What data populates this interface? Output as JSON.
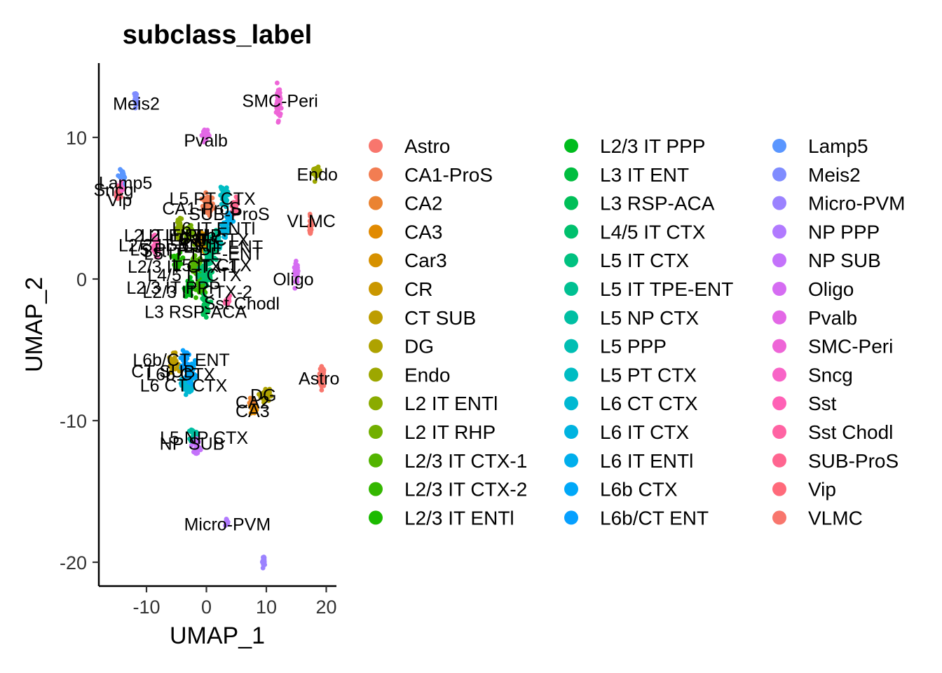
{
  "chart_data": {
    "type": "scatter",
    "title": "subclass_label",
    "xlabel": "UMAP_1",
    "ylabel": "UMAP_2",
    "xlim": [
      -18,
      21
    ],
    "ylim": [
      -22,
      15
    ],
    "xticks": [
      -10,
      0,
      10,
      20
    ],
    "yticks": [
      -20,
      -10,
      0,
      10
    ],
    "legend_position": "right",
    "grid": false,
    "clusters": [
      {
        "name": "Astro",
        "color": "#F8766D",
        "x": 19.3,
        "y": -6.9,
        "sx": 0.4,
        "sy": 0.6,
        "n": 40
      },
      {
        "name": "CA1-ProS",
        "color": "#F27D52",
        "x": 0.2,
        "y": 5.2,
        "sx": 0.8,
        "sy": 0.6,
        "n": 40
      },
      {
        "name": "CA2",
        "color": "#EA8331",
        "x": 7.6,
        "y": -8.8,
        "sx": 0.4,
        "sy": 0.3,
        "n": 25
      },
      {
        "name": "CA3",
        "color": "#E18A00",
        "x": 7.9,
        "y": -9.2,
        "sx": 0.4,
        "sy": 0.3,
        "n": 25
      },
      {
        "name": "Car3",
        "color": "#D69100",
        "x": -0.8,
        "y": 3.0,
        "sx": 0.7,
        "sy": 0.5,
        "n": 30
      },
      {
        "name": "CR",
        "color": "#CA9700",
        "x": -0.5,
        "y": 2.3,
        "sx": 0.5,
        "sy": 0.4,
        "n": 20
      },
      {
        "name": "CT SUB",
        "color": "#BD9D00",
        "x": -5.5,
        "y": -5.9,
        "sx": 0.6,
        "sy": 0.5,
        "n": 30
      },
      {
        "name": "DG",
        "color": "#AEA200",
        "x": 9.8,
        "y": -8.2,
        "sx": 0.6,
        "sy": 0.4,
        "n": 40
      },
      {
        "name": "Endo",
        "color": "#9DA700",
        "x": 18.4,
        "y": 7.5,
        "sx": 0.5,
        "sy": 0.3,
        "n": 30
      },
      {
        "name": "L2 IT ENTl",
        "color": "#8AAB00",
        "x": -4.5,
        "y": 3.6,
        "sx": 0.6,
        "sy": 0.5,
        "n": 30
      },
      {
        "name": "L2 IT RHP",
        "color": "#72AF00",
        "x": -2.8,
        "y": 3.2,
        "sx": 0.6,
        "sy": 0.5,
        "n": 30
      },
      {
        "name": "L2/3 IT CTX-1",
        "color": "#53B400",
        "x": -1.8,
        "y": 0.9,
        "sx": 0.8,
        "sy": 0.6,
        "n": 60
      },
      {
        "name": "L2/3 IT CTX-2",
        "color": "#34B700",
        "x": -0.8,
        "y": -0.4,
        "sx": 0.7,
        "sy": 0.6,
        "n": 45
      },
      {
        "name": "L2/3 IT ENTl",
        "color": "#1CBA00",
        "x": -4.8,
        "y": 1.3,
        "sx": 0.6,
        "sy": 0.5,
        "n": 30
      },
      {
        "name": "L2/3 IT PPP",
        "color": "#00BC1D",
        "x": -2.9,
        "y": -0.6,
        "sx": 0.6,
        "sy": 0.5,
        "n": 30
      },
      {
        "name": "L3 IT ENT",
        "color": "#00BD3F",
        "x": 0.9,
        "y": 2.5,
        "sx": 0.6,
        "sy": 0.5,
        "n": 30
      },
      {
        "name": "L3 RSP-ACA",
        "color": "#00BF58",
        "x": -0.2,
        "y": -1.9,
        "sx": 0.5,
        "sy": 0.6,
        "n": 30
      },
      {
        "name": "L4/5 IT CTX",
        "color": "#00C06D",
        "x": -0.3,
        "y": 0.3,
        "sx": 0.9,
        "sy": 0.7,
        "n": 60
      },
      {
        "name": "L5 IT CTX",
        "color": "#00C180",
        "x": 0.6,
        "y": 1.6,
        "sx": 0.8,
        "sy": 0.6,
        "n": 50
      },
      {
        "name": "L5 IT TPE-ENT",
        "color": "#00C092",
        "x": 1.4,
        "y": 2.9,
        "sx": 0.6,
        "sy": 0.5,
        "n": 30
      },
      {
        "name": "L5 NP CTX",
        "color": "#00BFA3",
        "x": -2.2,
        "y": -11.0,
        "sx": 0.4,
        "sy": 0.4,
        "n": 30
      },
      {
        "name": "L5 PPP",
        "color": "#00BEB3",
        "x": 1.9,
        "y": 2.4,
        "sx": 0.5,
        "sy": 0.4,
        "n": 25
      },
      {
        "name": "L5 PT CTX",
        "color": "#00BCC3",
        "x": 2.9,
        "y": 5.8,
        "sx": 0.5,
        "sy": 0.6,
        "n": 40
      },
      {
        "name": "L6 CT CTX",
        "color": "#00B8D2",
        "x": -3.2,
        "y": -7.5,
        "sx": 0.8,
        "sy": 0.5,
        "n": 50
      },
      {
        "name": "L6 IT CTX",
        "color": "#00B3E0",
        "x": 3.1,
        "y": 3.4,
        "sx": 0.5,
        "sy": 0.5,
        "n": 35
      },
      {
        "name": "L6 IT ENTl",
        "color": "#00AEEC",
        "x": 3.8,
        "y": 4.3,
        "sx": 0.5,
        "sy": 0.4,
        "n": 25
      },
      {
        "name": "L6b CTX",
        "color": "#00A8F8",
        "x": -2.6,
        "y": -6.5,
        "sx": 0.7,
        "sy": 0.6,
        "n": 40
      },
      {
        "name": "L6b/CT ENT",
        "color": "#06A0FF",
        "x": -3.7,
        "y": -5.7,
        "sx": 0.5,
        "sy": 0.5,
        "n": 30
      },
      {
        "name": "Lamp5",
        "color": "#5A96FF",
        "x": -14.0,
        "y": 7.2,
        "sx": 0.4,
        "sy": 0.4,
        "n": 35
      },
      {
        "name": "Meis2",
        "color": "#7F8CFF",
        "x": -11.8,
        "y": 12.7,
        "sx": 0.2,
        "sy": 0.4,
        "n": 20
      },
      {
        "name": "Micro-PVM",
        "color": "#9B82FF",
        "x": 9.6,
        "y": -19.9,
        "sx": 0.2,
        "sy": 0.3,
        "n": 25
      },
      {
        "name": "NP PPP",
        "color": "#B17AFF",
        "x": 3.5,
        "y": -17.2,
        "sx": 0.2,
        "sy": 0.2,
        "n": 15
      },
      {
        "name": "NP SUB",
        "color": "#C472FB",
        "x": -1.6,
        "y": -11.8,
        "sx": 0.4,
        "sy": 0.4,
        "n": 30
      },
      {
        "name": "Oligo",
        "color": "#D56CF2",
        "x": 15.0,
        "y": 0.4,
        "sx": 0.3,
        "sy": 0.6,
        "n": 30
      },
      {
        "name": "Pvalb",
        "color": "#E368E6",
        "x": -0.2,
        "y": 10.2,
        "sx": 0.4,
        "sy": 0.4,
        "n": 30
      },
      {
        "name": "SMC-Peri",
        "color": "#EE65D7",
        "x": 12.0,
        "y": 12.5,
        "sx": 0.3,
        "sy": 1.0,
        "n": 50
      },
      {
        "name": "Sncg",
        "color": "#F864C7",
        "x": -14.5,
        "y": 6.4,
        "sx": 0.4,
        "sy": 0.3,
        "n": 25
      },
      {
        "name": "Sst",
        "color": "#FF61B6",
        "x": -8.5,
        "y": 2.3,
        "sx": 0.5,
        "sy": 0.5,
        "n": 30
      },
      {
        "name": "Sst Chodl",
        "color": "#FF63A3",
        "x": 3.6,
        "y": -1.6,
        "sx": 0.3,
        "sy": 0.3,
        "n": 20
      },
      {
        "name": "SUB-ProS",
        "color": "#FF6590",
        "x": 4.7,
        "y": 5.1,
        "sx": 0.5,
        "sy": 0.4,
        "n": 30
      },
      {
        "name": "Vip",
        "color": "#FF6A7B",
        "x": -14.8,
        "y": 5.9,
        "sx": 0.3,
        "sy": 0.4,
        "n": 30
      },
      {
        "name": "VLMC",
        "color": "#F8766D",
        "x": 17.4,
        "y": 3.8,
        "sx": 0.2,
        "sy": 0.7,
        "n": 20
      }
    ],
    "cluster_labels": [
      {
        "text": "Meis2",
        "x": -11.7,
        "y": 12.4
      },
      {
        "text": "SMC-Peri",
        "x": 12.3,
        "y": 12.6
      },
      {
        "text": "Pvalb",
        "x": -0.1,
        "y": 9.8
      },
      {
        "text": "Endo",
        "x": 18.5,
        "y": 7.4
      },
      {
        "text": "Lamp5",
        "x": -13.5,
        "y": 6.8
      },
      {
        "text": "Sncg",
        "x": -15.5,
        "y": 6.3
      },
      {
        "text": "Vip",
        "x": -14.5,
        "y": 5.6
      },
      {
        "text": "L5 PT CTX",
        "x": 1.0,
        "y": 5.7
      },
      {
        "text": "CA1-ProS",
        "x": -0.8,
        "y": 5.0
      },
      {
        "text": "SUB-ProS",
        "x": 3.8,
        "y": 4.6
      },
      {
        "text": "VLMC",
        "x": 17.5,
        "y": 4.1
      },
      {
        "text": "L6 IT ENTl",
        "x": 1.2,
        "y": 3.6
      },
      {
        "text": "L2 IT ENTl",
        "x": -6.8,
        "y": 3.1
      },
      {
        "text": "L2 IT RHP",
        "x": -4.2,
        "y": 3.1
      },
      {
        "text": "Car3",
        "x": -1.5,
        "y": 2.9
      },
      {
        "text": "L6 IT CTX",
        "x": 0.5,
        "y": 2.8
      },
      {
        "text": "L2/3 IT ENTl",
        "x": -6.5,
        "y": 2.4
      },
      {
        "text": "CR",
        "x": -2.0,
        "y": 2.4
      },
      {
        "text": "L3 IT ENT",
        "x": 2.8,
        "y": 2.3
      },
      {
        "text": "L5 PPP",
        "x": -7.8,
        "y": 2.1
      },
      {
        "text": "Sst",
        "x": -8.8,
        "y": 2.0
      },
      {
        "text": "L5 IT TPE-ENT",
        "x": -0.5,
        "y": 1.8
      },
      {
        "text": "L2/3 IT CTX-1",
        "x": -4.0,
        "y": 0.9
      },
      {
        "text": "L5 IT CTX",
        "x": 0.9,
        "y": 1.0
      },
      {
        "text": "L4/5 IT CTX",
        "x": -2.0,
        "y": 0.3
      },
      {
        "text": "Oligo",
        "x": 14.5,
        "y": 0.0
      },
      {
        "text": "L2/3 IT PPP",
        "x": -5.5,
        "y": -0.6
      },
      {
        "text": "L2/3 IT CTX-2",
        "x": -1.5,
        "y": -0.9
      },
      {
        "text": "Sst Chodl",
        "x": 5.9,
        "y": -1.7
      },
      {
        "text": "L3 RSP-ACA",
        "x": -1.8,
        "y": -2.3
      },
      {
        "text": "L6b/CT ENT",
        "x": -4.2,
        "y": -5.7
      },
      {
        "text": "CT SUB",
        "x": -7.2,
        "y": -6.5
      },
      {
        "text": "L6b CTX",
        "x": -4.3,
        "y": -6.7
      },
      {
        "text": "L6 CT CTX",
        "x": -3.8,
        "y": -7.5
      },
      {
        "text": "DG",
        "x": 9.5,
        "y": -8.2
      },
      {
        "text": "Astro",
        "x": 18.8,
        "y": -7.0
      },
      {
        "text": "CA2",
        "x": 7.7,
        "y": -8.7
      },
      {
        "text": "CA3",
        "x": 7.7,
        "y": -9.3
      },
      {
        "text": "L5 NP CTX",
        "x": -0.4,
        "y": -11.2
      },
      {
        "text": "NP SUB",
        "x": -2.4,
        "y": -11.6
      },
      {
        "text": "Micro-PVM",
        "x": 3.5,
        "y": -17.3
      }
    ]
  }
}
